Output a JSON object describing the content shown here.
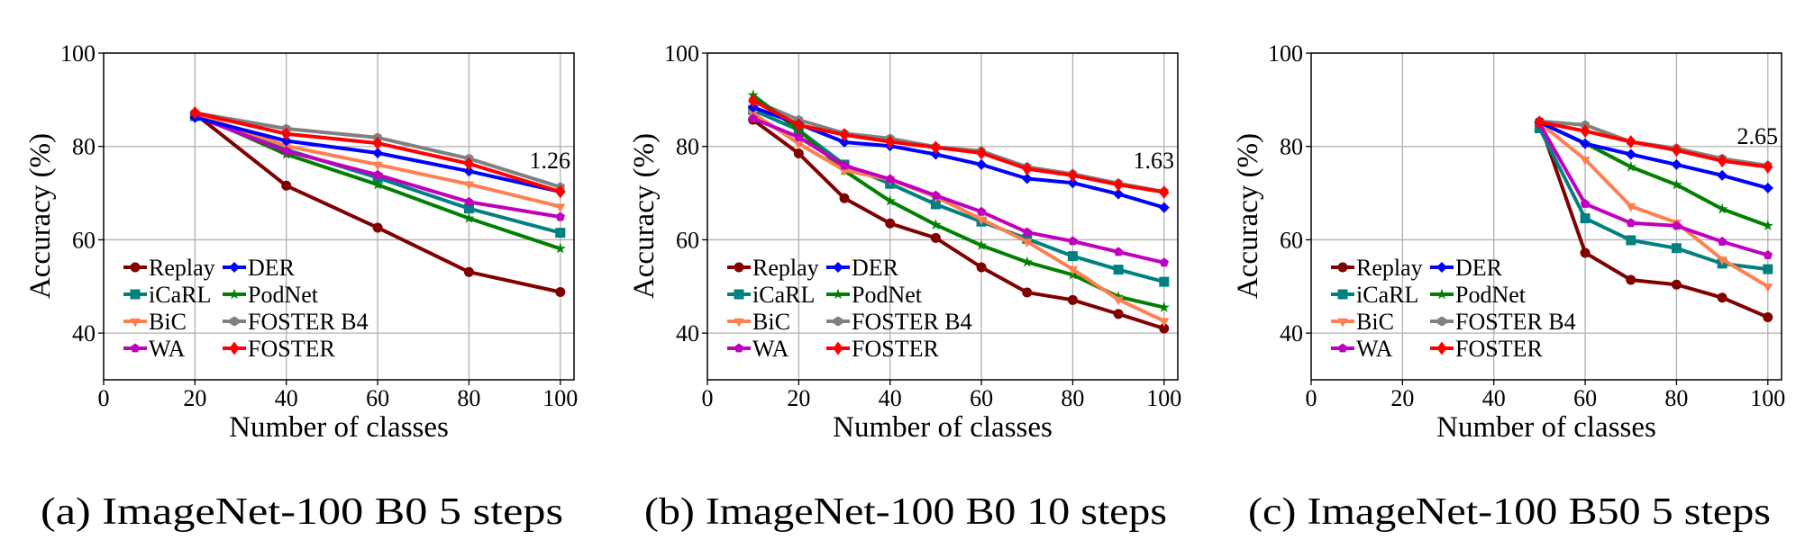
{
  "chart_data": [
    {
      "type": "line",
      "caption": "(a) ImageNet-100 B0 5 steps",
      "xlabel": "Number of classes",
      "ylabel": "Accuracy (%)",
      "xlim": [
        0,
        103
      ],
      "ylim": [
        30,
        100
      ],
      "xticks": [
        0,
        20,
        40,
        60,
        80,
        100
      ],
      "yticks": [
        40,
        60,
        80,
        100
      ],
      "grid": true,
      "legend_position": "lower-left",
      "annotation": "1.26",
      "x": [
        20,
        40,
        60,
        80,
        100
      ],
      "series": [
        {
          "name": "Replay",
          "values": [
            87.0,
            71.6,
            62.6,
            53.1,
            48.8
          ]
        },
        {
          "name": "DER",
          "values": [
            86.2,
            81.2,
            78.6,
            74.7,
            70.3
          ]
        },
        {
          "name": "iCaRL",
          "values": [
            86.5,
            79.3,
            73.3,
            66.7,
            61.5
          ]
        },
        {
          "name": "PodNet",
          "values": [
            87.0,
            78.3,
            71.8,
            64.6,
            58.1
          ]
        },
        {
          "name": "BiC",
          "values": [
            87.0,
            80.1,
            76.1,
            71.9,
            67.1
          ]
        },
        {
          "name": "FOSTER B4",
          "values": [
            87.2,
            83.8,
            81.9,
            77.4,
            71.3
          ]
        },
        {
          "name": "WA",
          "values": [
            86.5,
            79.0,
            73.9,
            68.1,
            64.9
          ]
        },
        {
          "name": "FOSTER",
          "values": [
            87.2,
            82.7,
            80.7,
            76.3,
            70.3
          ]
        }
      ]
    },
    {
      "type": "line",
      "caption": "(b) ImageNet-100 B0 10 steps",
      "xlabel": "Number of classes",
      "ylabel": "Accuracy (%)",
      "xlim": [
        0,
        103
      ],
      "ylim": [
        30,
        100
      ],
      "xticks": [
        0,
        20,
        40,
        60,
        80,
        100
      ],
      "yticks": [
        40,
        60,
        80,
        100
      ],
      "grid": true,
      "legend_position": "lower-left",
      "annotation": "1.63",
      "x": [
        10,
        20,
        30,
        40,
        50,
        60,
        70,
        80,
        90,
        100
      ],
      "series": [
        {
          "name": "Replay",
          "values": [
            85.7,
            78.5,
            68.9,
            63.5,
            60.4,
            54.1,
            48.7,
            47.1,
            44.1,
            41.0
          ]
        },
        {
          "name": "DER",
          "values": [
            88.4,
            84.8,
            80.9,
            80.1,
            78.3,
            76.1,
            73.1,
            72.2,
            69.8,
            66.9
          ]
        },
        {
          "name": "iCaRL",
          "values": [
            87.8,
            83.5,
            76.1,
            72.0,
            67.6,
            63.9,
            60.2,
            56.5,
            53.6,
            51.0
          ]
        },
        {
          "name": "PodNet",
          "values": [
            91.0,
            83.5,
            74.8,
            68.3,
            63.2,
            58.8,
            55.2,
            52.5,
            47.8,
            45.5
          ]
        },
        {
          "name": "BiC",
          "values": [
            87.1,
            80.6,
            74.9,
            72.9,
            69.2,
            64.4,
            59.6,
            53.7,
            47.2,
            42.6
          ]
        },
        {
          "name": "FOSTER B4",
          "values": [
            89.9,
            85.7,
            82.8,
            81.7,
            79.9,
            79.0,
            75.6,
            74.1,
            72.1,
            70.3
          ]
        },
        {
          "name": "WA",
          "values": [
            86.0,
            82.0,
            75.9,
            73.0,
            69.5,
            66.0,
            61.6,
            59.7,
            57.4,
            55.1
          ]
        },
        {
          "name": "FOSTER",
          "values": [
            89.8,
            84.6,
            82.5,
            81.0,
            79.8,
            78.6,
            75.2,
            73.8,
            71.8,
            70.2
          ]
        }
      ]
    },
    {
      "type": "line",
      "caption": "(c) ImageNet-100 B50 5 steps",
      "xlabel": "Number of classes",
      "ylabel": "Accuracy (%)",
      "xlim": [
        0,
        103
      ],
      "ylim": [
        30,
        100
      ],
      "xticks": [
        0,
        20,
        40,
        60,
        80,
        100
      ],
      "yticks": [
        40,
        60,
        80,
        100
      ],
      "grid": true,
      "legend_position": "lower-left",
      "annotation": "2.65",
      "x": [
        50,
        60,
        70,
        80,
        90,
        100
      ],
      "series": [
        {
          "name": "Replay",
          "values": [
            85.2,
            57.2,
            51.4,
            50.4,
            47.6,
            43.4
          ]
        },
        {
          "name": "DER",
          "values": [
            85.2,
            80.6,
            78.3,
            76.1,
            73.8,
            71.1
          ]
        },
        {
          "name": "iCaRL",
          "values": [
            83.9,
            64.6,
            59.9,
            58.2,
            54.9,
            53.7
          ]
        },
        {
          "name": "PodNet",
          "values": [
            85.2,
            80.7,
            75.6,
            71.8,
            66.6,
            63.0
          ]
        },
        {
          "name": "BiC",
          "values": [
            85.1,
            77.2,
            67.2,
            63.7,
            55.8,
            50.0
          ]
        },
        {
          "name": "FOSTER B4",
          "values": [
            85.4,
            84.6,
            81.0,
            79.6,
            77.4,
            75.9
          ]
        },
        {
          "name": "WA",
          "values": [
            84.9,
            67.7,
            63.6,
            63.0,
            59.6,
            56.7
          ]
        },
        {
          "name": "FOSTER",
          "values": [
            85.2,
            83.3,
            81.0,
            79.2,
            76.9,
            75.6
          ]
        }
      ]
    }
  ],
  "series_style": {
    "Replay": {
      "color": "#800000",
      "marker": "circle"
    },
    "DER": {
      "color": "#0000ff",
      "marker": "diamond"
    },
    "iCaRL": {
      "color": "#008080",
      "marker": "square"
    },
    "PodNet": {
      "color": "#008000",
      "marker": "star"
    },
    "BiC": {
      "color": "#ff7f50",
      "marker": "triangle-down"
    },
    "FOSTER B4": {
      "color": "#808080",
      "marker": "hexagon"
    },
    "WA": {
      "color": "#bf00bf",
      "marker": "pentagon"
    },
    "FOSTER": {
      "color": "#ff0000",
      "marker": "thin-diamond"
    }
  },
  "draw_order": [
    "FOSTER B4",
    "Replay",
    "iCaRL",
    "PodNet",
    "BiC",
    "WA",
    "DER",
    "FOSTER"
  ],
  "legend_order": [
    [
      "Replay",
      "DER"
    ],
    [
      "iCaRL",
      "PodNet"
    ],
    [
      "BiC",
      "FOSTER B4"
    ],
    [
      "WA",
      "FOSTER"
    ]
  ]
}
